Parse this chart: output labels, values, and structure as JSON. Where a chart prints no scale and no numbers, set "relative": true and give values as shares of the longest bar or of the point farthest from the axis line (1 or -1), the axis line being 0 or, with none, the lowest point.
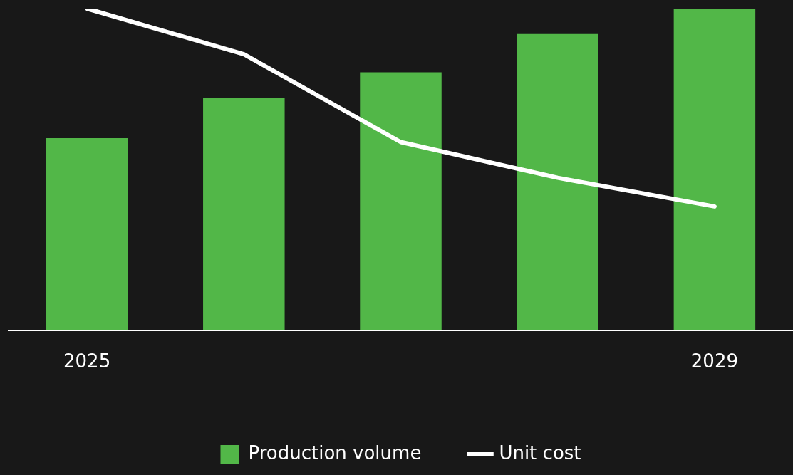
{
  "chart_data": {
    "type": "bar",
    "relative": true,
    "categories": [
      "2025",
      null,
      null,
      null,
      "2029"
    ],
    "series": [
      {
        "name": "Production volume",
        "color": "#52b748",
        "values": [
          0.597,
          0.723,
          0.802,
          0.921,
          1
        ]
      },
      {
        "name": "Unit cost",
        "type": "line",
        "color": "#ffffff",
        "values": [
          1,
          0.858,
          0.585,
          0.474,
          0.385
        ]
      }
    ],
    "legend": "bottom",
    "marker": "none",
    "line_style": "solid"
  }
}
